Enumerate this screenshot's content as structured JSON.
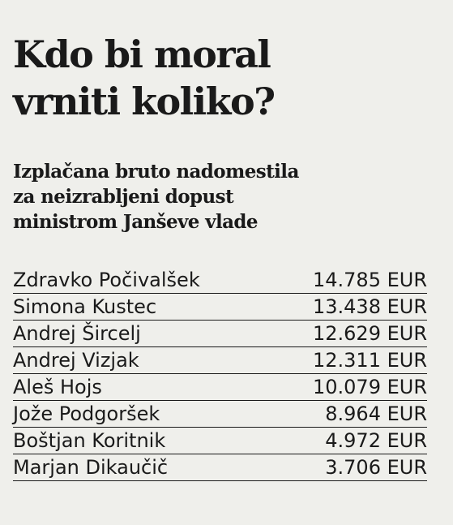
{
  "title_line1": "Kdo bi moral",
  "title_line2": "vrniti koliko?",
  "subtitle_line1": "Izplačana bruto nadomestila",
  "subtitle_line2": "za neizrabljeni dopust",
  "subtitle_line3": "ministrom Janševe vlade",
  "chart_data": {
    "type": "table",
    "title": "Kdo bi moral vrniti koliko?",
    "subtitle": "Izplačana bruto nadomestila za neizrabljeni dopust ministrom Janševe vlade",
    "columns": [
      "",
      ""
    ],
    "rows": [
      {
        "name": "Zdravko Počivalšek",
        "value": "14.785 EUR"
      },
      {
        "name": "Simona Kustec",
        "value": "13.438 EUR"
      },
      {
        "name": "Andrej Šircelj",
        "value": "12.629 EUR"
      },
      {
        "name": "Andrej Vizjak",
        "value": "12.311 EUR"
      },
      {
        "name": "Aleš Hojs",
        "value": "10.079 EUR"
      },
      {
        "name": "Jože Podgoršek",
        "value": "8.964 EUR"
      },
      {
        "name": "Boštjan Koritnik",
        "value": "4.972 EUR"
      },
      {
        "name": "Marjan Dikaučič",
        "value": "3.706 EUR"
      }
    ],
    "values": [
      14785,
      13438,
      12629,
      12311,
      10079,
      8964,
      4972,
      3706
    ],
    "unit": "EUR"
  }
}
